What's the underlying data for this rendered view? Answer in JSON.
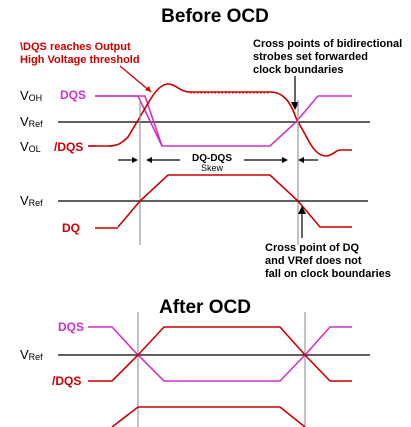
{
  "before": {
    "title": "Before OCD",
    "annotation_threshold": [
      "\\DQS reaches Output",
      "High Voltage threshold"
    ],
    "annotation_cross_bidir": [
      "Cross points of bidirectional",
      "strobes set forwarded",
      "clock boundaries"
    ],
    "label_voh": {
      "main": "V",
      "sub": "OH"
    },
    "label_vref1": {
      "main": "V",
      "sub": "Ref"
    },
    "label_vol": {
      "main": "V",
      "sub": "OL"
    },
    "label_vref2": {
      "main": "V",
      "sub": "Ref"
    },
    "signal_dqs": "DQS",
    "signal_ndqs": "/DQS",
    "signal_dq": "DQ",
    "skew_label": [
      "DQ-DQS",
      "Skew"
    ],
    "annotation_cross_dq": [
      "Cross point of DQ",
      "and VRef does not",
      "fall on clock boundaries"
    ]
  },
  "after": {
    "title": "After OCD",
    "signal_dqs": "DQS",
    "label_vref": {
      "main": "V",
      "sub": "Ref"
    },
    "signal_ndqs": "/DQS"
  },
  "colors": {
    "pink": "#cc33cc",
    "red": "#cc0000",
    "black": "#000000",
    "gray": "#999999"
  }
}
